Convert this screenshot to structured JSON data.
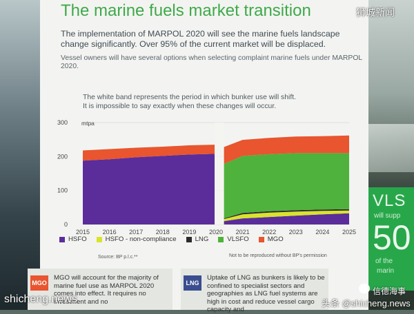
{
  "poster": {
    "title": "The marine fuels market transition",
    "lead": "The implementation of MARPOL 2020 will see the marine fuels landscape change significantly. Over 95% of the current market will be displaced.",
    "lead2": "Vessel owners will have several options when selecting complaint marine fuels under MARPOL 2020.",
    "note_line1": "The white band represents the period in which bunker use will shift.",
    "note_line2": "It is impossible to say exactly when these changes will occur.",
    "source": "Source: BP p.l.c.**",
    "permission": "Not to be reproduced without BP's permission"
  },
  "chart_data": {
    "type": "area",
    "stacked": true,
    "ylabel": "mtpa",
    "ylim": [
      0,
      300
    ],
    "yticks": [
      0,
      100,
      200,
      300
    ],
    "xlim": [
      2015,
      2025
    ],
    "xticks": [
      2015,
      2016,
      2017,
      2018,
      2019,
      2020,
      2021,
      2022,
      2023,
      2024,
      2025
    ],
    "transition_band": [
      2019.95,
      2020.3
    ],
    "legend_position": "bottom",
    "series": [
      {
        "name": "HSFO",
        "color": "#5b2d9b",
        "points": [
          [
            2015,
            188
          ],
          [
            2016,
            192
          ],
          [
            2017,
            198
          ],
          [
            2018,
            202
          ],
          [
            2019,
            206
          ],
          [
            2019.95,
            208
          ],
          [
            2020.3,
            10
          ],
          [
            2021,
            18
          ],
          [
            2022,
            22
          ],
          [
            2023,
            26
          ],
          [
            2024,
            30
          ],
          [
            2025,
            33
          ]
        ]
      },
      {
        "name": "HSFO - non-compliance",
        "color": "#d9e32c",
        "points": [
          [
            2015,
            0
          ],
          [
            2016,
            0
          ],
          [
            2017,
            0
          ],
          [
            2018,
            0
          ],
          [
            2019,
            0
          ],
          [
            2019.95,
            0
          ],
          [
            2020.3,
            6
          ],
          [
            2021,
            12
          ],
          [
            2022,
            13
          ],
          [
            2023,
            12
          ],
          [
            2024,
            10
          ],
          [
            2025,
            8
          ]
        ]
      },
      {
        "name": "LNG",
        "color": "#2b2b2b",
        "points": [
          [
            2015,
            0
          ],
          [
            2016,
            0
          ],
          [
            2017,
            0
          ],
          [
            2018,
            0
          ],
          [
            2019,
            0
          ],
          [
            2019.95,
            0
          ],
          [
            2020.3,
            2
          ],
          [
            2021,
            4
          ],
          [
            2022,
            4
          ],
          [
            2023,
            4
          ],
          [
            2024,
            4
          ],
          [
            2025,
            4
          ]
        ]
      },
      {
        "name": "VLSFO",
        "color": "#4fb23c",
        "points": [
          [
            2015,
            0
          ],
          [
            2016,
            0
          ],
          [
            2017,
            0
          ],
          [
            2018,
            0
          ],
          [
            2019,
            0
          ],
          [
            2019.95,
            0
          ],
          [
            2020.3,
            160
          ],
          [
            2021,
            168
          ],
          [
            2022,
            168
          ],
          [
            2023,
            168
          ],
          [
            2024,
            166
          ],
          [
            2025,
            165
          ]
        ]
      },
      {
        "name": "MGO",
        "color": "#e8552f",
        "points": [
          [
            2015,
            30
          ],
          [
            2016,
            30
          ],
          [
            2017,
            28
          ],
          [
            2018,
            27
          ],
          [
            2019,
            27
          ],
          [
            2019.95,
            27
          ],
          [
            2020.3,
            50
          ],
          [
            2021,
            47
          ],
          [
            2022,
            48
          ],
          [
            2023,
            49
          ],
          [
            2024,
            50
          ],
          [
            2025,
            52
          ]
        ]
      }
    ]
  },
  "mgo_box": {
    "tag": "MGO",
    "text": "MGO will account for the majority of marine fuel use as MARPOL 2020 comes into effect. It requires no investment and no"
  },
  "lng_box": {
    "tag": "LNG",
    "text": "Uptake of LNG as bunkers is likely to be confined to specialist sectors and geographies as LNG fuel systems are high in cost and reduce vessel cargo capacity and"
  },
  "side_panel": {
    "big": "VLS",
    "small1": "will supp",
    "digits": "50",
    "small2": "of the",
    "small3": "marin"
  },
  "watermarks": {
    "top": "狮城新闻",
    "left": "shicheng.news",
    "right": "头条 @shicheng.news",
    "wechat": "信德海事"
  },
  "colors": {
    "title_green": "#3fa94a",
    "panel_green": "#27a74a"
  }
}
